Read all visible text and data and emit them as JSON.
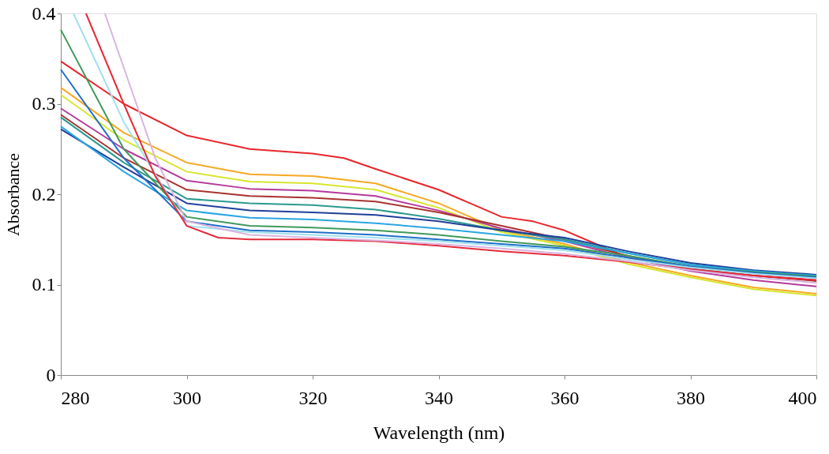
{
  "chart_data": {
    "type": "line",
    "xlabel": "Wavelength (nm)",
    "ylabel": "Absorbance",
    "xlim": [
      280,
      400
    ],
    "xticks": [
      280,
      300,
      320,
      340,
      360,
      380,
      400
    ],
    "ylim": [
      0,
      0.4
    ],
    "yticks": [
      0,
      0.1,
      0.2,
      0.3,
      0.4
    ],
    "grid": false,
    "legend": false,
    "marker": "none",
    "line_style": "solid",
    "series": [
      {
        "color": "#e8262b",
        "x": [
          280,
          290,
          300,
          310,
          320,
          325,
          330,
          340,
          345,
          350,
          355,
          360,
          365,
          370,
          380,
          390,
          400
        ],
        "values": [
          0.347,
          0.3,
          0.265,
          0.25,
          0.245,
          0.24,
          0.228,
          0.205,
          0.19,
          0.175,
          0.17,
          0.16,
          0.145,
          0.13,
          0.117,
          0.11,
          0.105
        ]
      },
      {
        "color": "#f7a823",
        "x": [
          280,
          290,
          300,
          310,
          320,
          330,
          340,
          350,
          360,
          370,
          380,
          390,
          400
        ],
        "values": [
          0.318,
          0.268,
          0.235,
          0.222,
          0.22,
          0.212,
          0.19,
          0.16,
          0.145,
          0.125,
          0.11,
          0.097,
          0.09
        ]
      },
      {
        "color": "#d7e62e",
        "x": [
          280,
          290,
          300,
          310,
          320,
          330,
          340,
          350,
          360,
          370,
          380,
          390,
          400
        ],
        "values": [
          0.31,
          0.26,
          0.225,
          0.214,
          0.212,
          0.205,
          0.185,
          0.158,
          0.143,
          0.123,
          0.108,
          0.095,
          0.088
        ]
      },
      {
        "color": "#b53a9b",
        "x": [
          280,
          290,
          300,
          310,
          320,
          330,
          340,
          350,
          360,
          370,
          380,
          390,
          400
        ],
        "values": [
          0.295,
          0.25,
          0.215,
          0.206,
          0.204,
          0.198,
          0.182,
          0.162,
          0.148,
          0.13,
          0.115,
          0.105,
          0.098
        ]
      },
      {
        "color": "#a8322e",
        "x": [
          280,
          290,
          300,
          310,
          320,
          330,
          340,
          350,
          360,
          370,
          380,
          390,
          400
        ],
        "values": [
          0.288,
          0.24,
          0.205,
          0.198,
          0.196,
          0.192,
          0.18,
          0.165,
          0.15,
          0.132,
          0.118,
          0.11,
          0.104
        ]
      },
      {
        "color": "#2a9a8e",
        "x": [
          280,
          290,
          300,
          310,
          320,
          330,
          340,
          350,
          360,
          370,
          380,
          390,
          400
        ],
        "values": [
          0.285,
          0.235,
          0.195,
          0.19,
          0.188,
          0.183,
          0.173,
          0.16,
          0.15,
          0.135,
          0.122,
          0.115,
          0.11
        ]
      },
      {
        "color": "#1f3f9a",
        "x": [
          280,
          290,
          300,
          310,
          320,
          330,
          340,
          350,
          360,
          370,
          380,
          390,
          400
        ],
        "values": [
          0.272,
          0.23,
          0.19,
          0.182,
          0.18,
          0.177,
          0.17,
          0.16,
          0.152,
          0.137,
          0.124,
          0.116,
          0.111
        ]
      },
      {
        "color": "#2aa6e0",
        "x": [
          280,
          290,
          300,
          310,
          320,
          330,
          340,
          350,
          360,
          370,
          380,
          390,
          400
        ],
        "values": [
          0.275,
          0.225,
          0.182,
          0.174,
          0.172,
          0.168,
          0.162,
          0.155,
          0.148,
          0.135,
          0.122,
          0.115,
          0.11
        ]
      },
      {
        "color": "#3f9a5a",
        "x": [
          280,
          290,
          300,
          310,
          320,
          330,
          340,
          350,
          360,
          370,
          380,
          390,
          400
        ],
        "values": [
          0.382,
          0.25,
          0.175,
          0.165,
          0.163,
          0.16,
          0.155,
          0.148,
          0.142,
          0.132,
          0.12,
          0.114,
          0.109
        ]
      },
      {
        "color": "#1f6fc8",
        "x": [
          280,
          290,
          300,
          310,
          320,
          330,
          340,
          350,
          360,
          370,
          380,
          390,
          400
        ],
        "values": [
          0.338,
          0.24,
          0.17,
          0.16,
          0.158,
          0.155,
          0.15,
          0.145,
          0.14,
          0.13,
          0.12,
          0.113,
          0.108
        ]
      },
      {
        "color": "#9fe0ee",
        "x": [
          282,
          290,
          300,
          310,
          320,
          330,
          340,
          350,
          360,
          370,
          380,
          390,
          400
        ],
        "values": [
          0.4,
          0.28,
          0.165,
          0.158,
          0.155,
          0.152,
          0.148,
          0.143,
          0.138,
          0.128,
          0.119,
          0.112,
          0.107
        ]
      },
      {
        "color": "#e62b3a",
        "x": [
          284,
          290,
          295,
          300,
          305,
          310,
          320,
          330,
          340,
          350,
          360,
          370,
          380,
          390,
          400
        ],
        "values": [
          0.4,
          0.3,
          0.22,
          0.165,
          0.152,
          0.15,
          0.15,
          0.148,
          0.143,
          0.137,
          0.132,
          0.125,
          0.117,
          0.11,
          0.105
        ]
      },
      {
        "color": "#d9b4e0",
        "x": [
          287,
          295,
          300,
          310,
          320,
          330,
          340,
          350,
          360,
          370,
          380,
          390,
          400
        ],
        "values": [
          0.4,
          0.24,
          0.17,
          0.155,
          0.152,
          0.149,
          0.145,
          0.14,
          0.134,
          0.126,
          0.116,
          0.108,
          0.102
        ]
      }
    ]
  }
}
